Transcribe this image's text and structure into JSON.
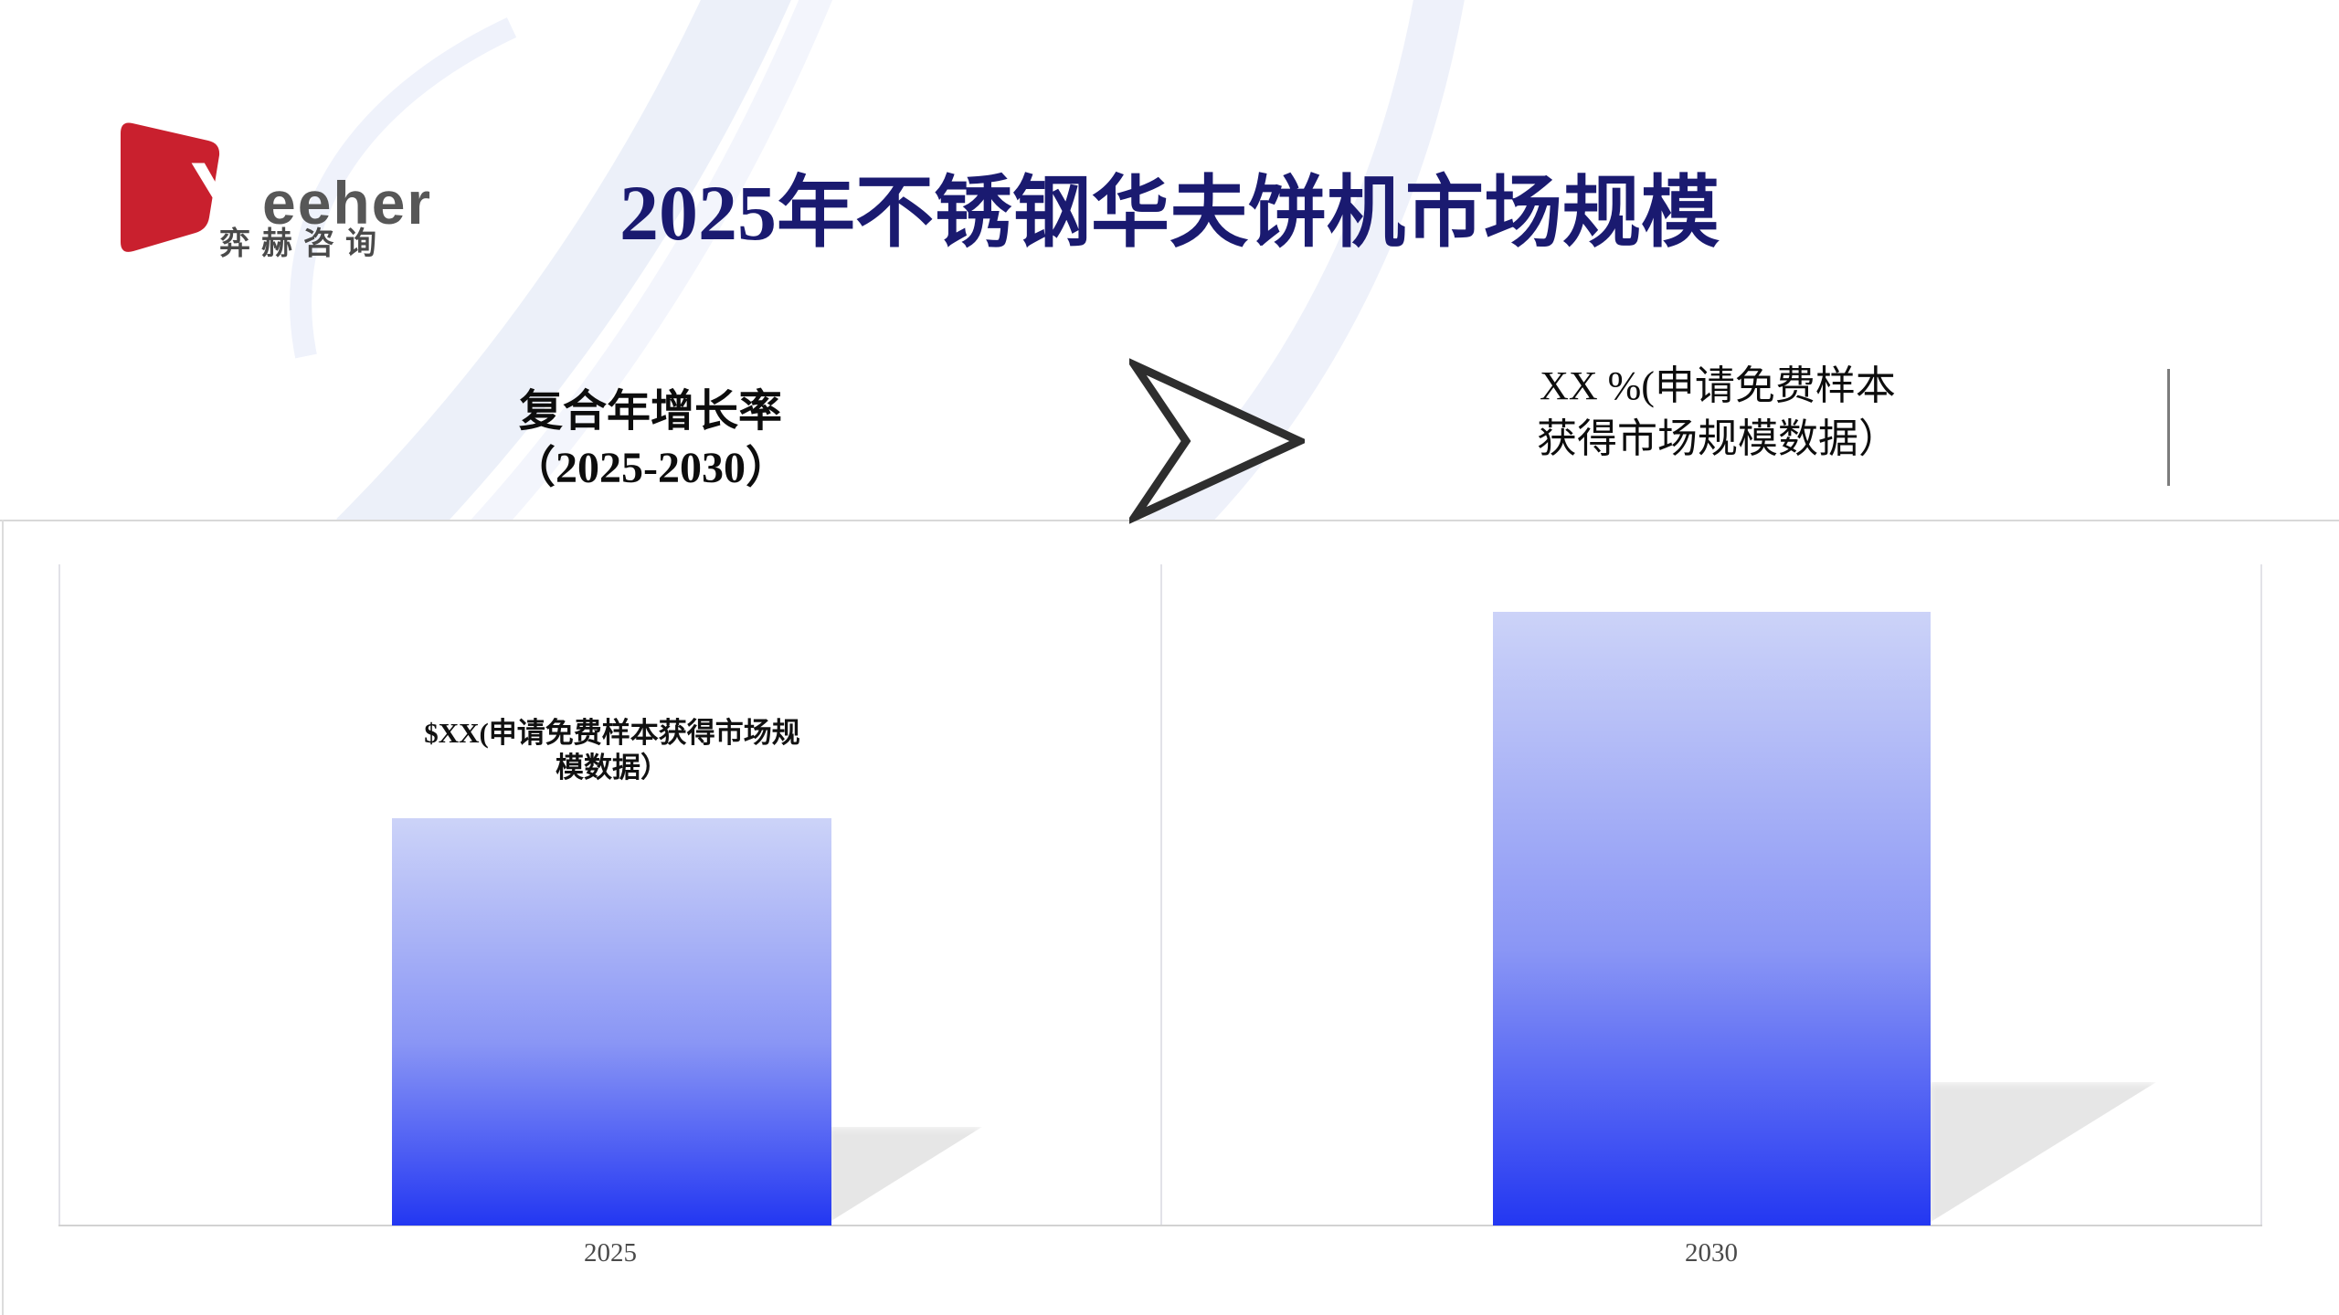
{
  "logo": {
    "word_initial": "Y",
    "word_rest": "eeher",
    "subtext": "弈赫咨询",
    "mark_color": "#c9202e",
    "text_color": "#575757"
  },
  "header": {
    "title": "2025年不锈钢华夫饼机市场规模",
    "title_color": "#1a1a70"
  },
  "callouts": {
    "cagr": {
      "lines": [
        "复合年增长率",
        "（2025-2030）"
      ]
    },
    "rate": {
      "lines": [
        "XX %(申请免费样本",
        "获得市场规模数据）"
      ]
    }
  },
  "decorations": {
    "arrow_icon": "right-chevron-arrow",
    "arrow_stroke": "#2e2e2e",
    "divider_color": "#7d7d7d",
    "swoosh_color": "#ecf0f9",
    "panel_border_color": "#d8d8d8"
  },
  "chart_data": {
    "type": "bar",
    "title": "",
    "xlabel": "",
    "ylabel": "",
    "categories": [
      "2025",
      "2030"
    ],
    "series": [
      {
        "name": "市场规模",
        "value_labels": [
          "$XX(申请免费样本获得市场规模数据）",
          null
        ],
        "relative_heights_pct": [
          61.6,
          92.8
        ]
      }
    ],
    "bar_label_lines": [
      "$XX(申请免费样本获得市场规",
      "模数据）"
    ],
    "bar_gradient_top": "#ccd3f8",
    "bar_gradient_bottom": "#2337f2",
    "shadow_color": "#e6e6e6",
    "axis_line_color": "#d2d2d2",
    "grid_line_color": "#e2e2e8",
    "tick_color": "#4a4a4a",
    "legend_visible": false,
    "grid_vertical_splitlines": true
  }
}
